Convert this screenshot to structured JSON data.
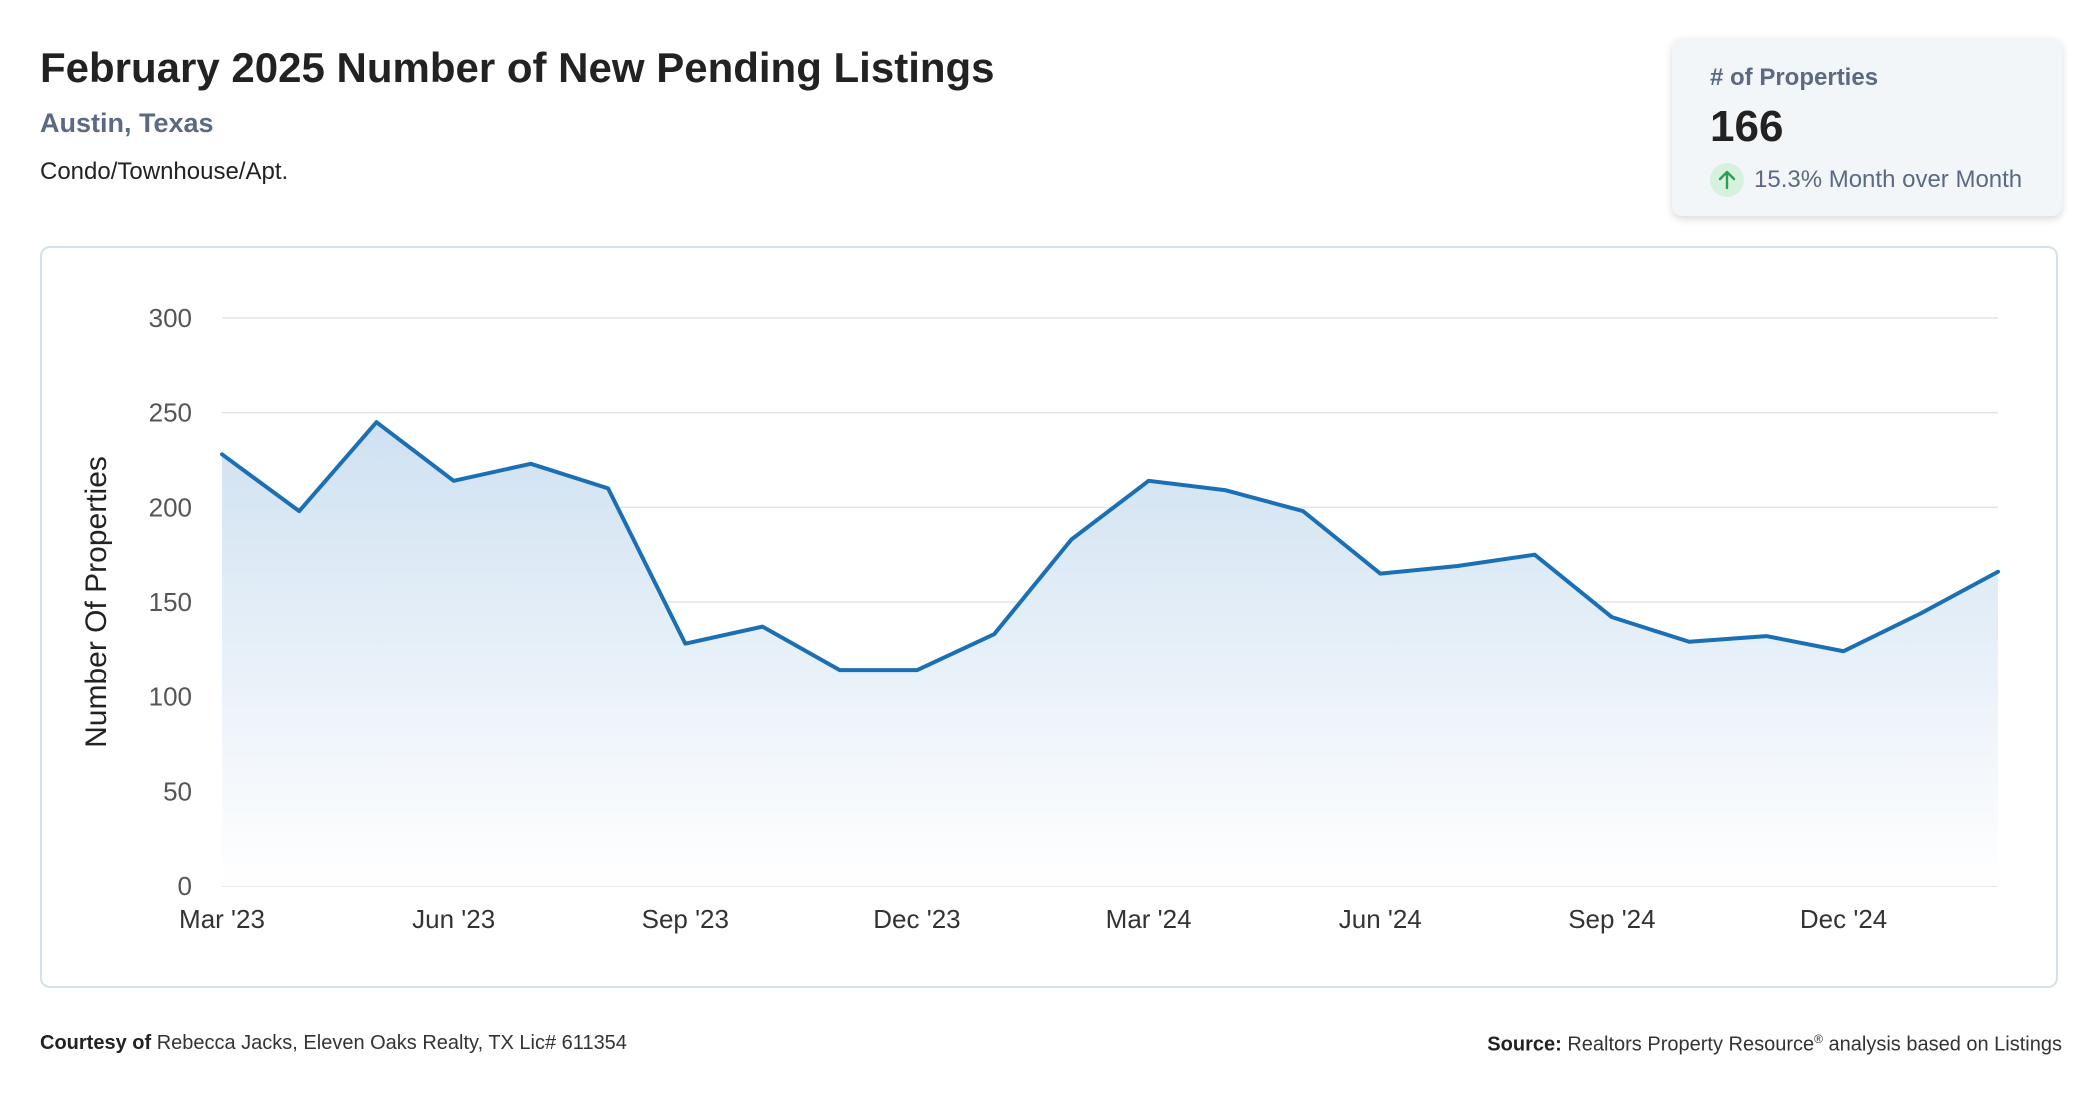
{
  "header": {
    "title": "February 2025 Number of New Pending Listings",
    "location": "Austin, Texas",
    "property_type": "Condo/Townhouse/Apt."
  },
  "kpi": {
    "label": "# of Properties",
    "value": "166",
    "change_text": "15.3% Month over Month",
    "change_direction": "up",
    "icon": "arrow-up-icon",
    "colors": {
      "up_icon_bg": "#d7f1df",
      "up_icon": "#2e9b57"
    }
  },
  "chart_data": {
    "type": "area",
    "title": "",
    "xlabel": "",
    "ylabel": "Number Of Properties",
    "ylim": [
      0,
      300
    ],
    "y_ticks": [
      0,
      50,
      100,
      150,
      200,
      250,
      300
    ],
    "x_tick_labels": [
      "Mar '23",
      "Jun '23",
      "Sep '23",
      "Dec '23",
      "Mar '24",
      "Jun '24",
      "Sep '24",
      "Dec '24"
    ],
    "categories": [
      "Mar '23",
      "Apr '23",
      "May '23",
      "Jun '23",
      "Jul '23",
      "Aug '23",
      "Sep '23",
      "Oct '23",
      "Nov '23",
      "Dec '23",
      "Jan '24",
      "Feb '24",
      "Mar '24",
      "Apr '24",
      "May '24",
      "Jun '24",
      "Jul '24",
      "Aug '24",
      "Sep '24",
      "Oct '24",
      "Nov '24",
      "Dec '24",
      "Jan '25",
      "Feb '25"
    ],
    "series": [
      {
        "values": [
          228,
          198,
          245,
          214,
          223,
          210,
          128,
          137,
          114,
          114,
          133,
          183,
          214,
          209,
          198,
          165,
          169,
          175,
          142,
          129,
          132,
          124,
          144,
          166
        ]
      }
    ],
    "grid": true,
    "legend": "none",
    "colors": {
      "line": "#1a6fb5",
      "fill_top": "#cfe1f1",
      "fill_bottom": "#ffffff",
      "grid": "#e1e4e8"
    }
  },
  "footer": {
    "courtesy_label": "Courtesy of",
    "courtesy_text": "Rebecca Jacks, Eleven Oaks Realty, TX Lic# 611354",
    "source_label": "Source:",
    "source_text": "Realtors Property Resource",
    "source_mark": "®",
    "source_suffix": "analysis based on Listings"
  }
}
